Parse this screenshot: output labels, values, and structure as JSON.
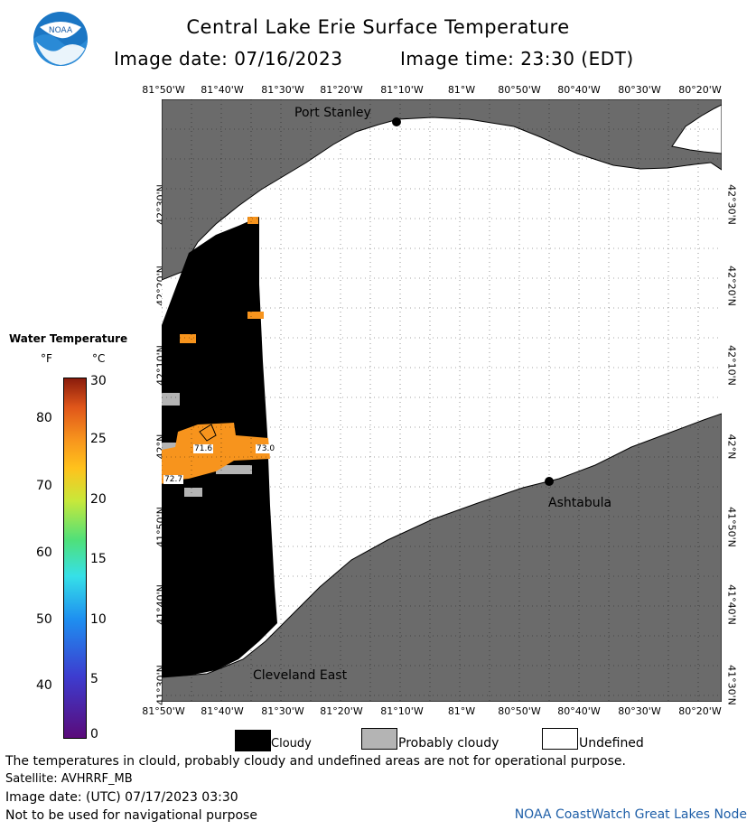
{
  "header": {
    "title": "Central Lake Erie Surface Temperature",
    "date_label": "Image date: 07/16/2023",
    "time_label": "Image time: 23:30 (EDT)"
  },
  "logo": {
    "text": "NOAA",
    "icon": "noaa-logo-icon"
  },
  "map": {
    "longitude_labels": [
      "81°50'W",
      "81°40'W",
      "81°30'W",
      "81°20'W",
      "81°10'W",
      "81°W",
      "80°50'W",
      "80°40'W",
      "80°30'W",
      "80°20'W"
    ],
    "latitude_labels": [
      "42°30'N",
      "42°20'N",
      "42°10'N",
      "42°N",
      "41°50'N",
      "41°40'N",
      "41°30'N"
    ],
    "places": [
      {
        "name": "Port Stanley"
      },
      {
        "name": "Ashtabula"
      },
      {
        "name": "Cleveland East"
      }
    ],
    "temperature_labels": [
      "71.6",
      "73.0",
      "72.7"
    ],
    "colors": {
      "land": "#6b6b6b",
      "cloudy": "#000000",
      "probably_cloudy": "#b4b4b4",
      "undefined": "#ffffff",
      "warm_water": "#f7941d"
    }
  },
  "legend": {
    "title": "Water Temperature",
    "unit_f": "°F",
    "unit_c": "°C",
    "fahrenheit_ticks": [
      "80",
      "70",
      "60",
      "50",
      "40"
    ],
    "celsius_ticks": [
      "30",
      "25",
      "20",
      "15",
      "10",
      "5",
      "0"
    ]
  },
  "categories": [
    {
      "label": "Cloudy",
      "color": "#000000"
    },
    {
      "label": "Probably cloudy",
      "color": "#b4b4b4"
    },
    {
      "label": "Undefined",
      "color": "#ffffff"
    }
  ],
  "footer": {
    "note": "The temperatures in clould, probably cloudy and undefined areas are not for operational purpose.",
    "satellite": "Satellite: AVHRRF_MB",
    "utc_date": "Image date: (UTC) 07/17/2023  03:30",
    "nav_warning": "Not to be used for navigational purpose",
    "credit": "NOAA CoastWatch Great Lakes Node"
  }
}
